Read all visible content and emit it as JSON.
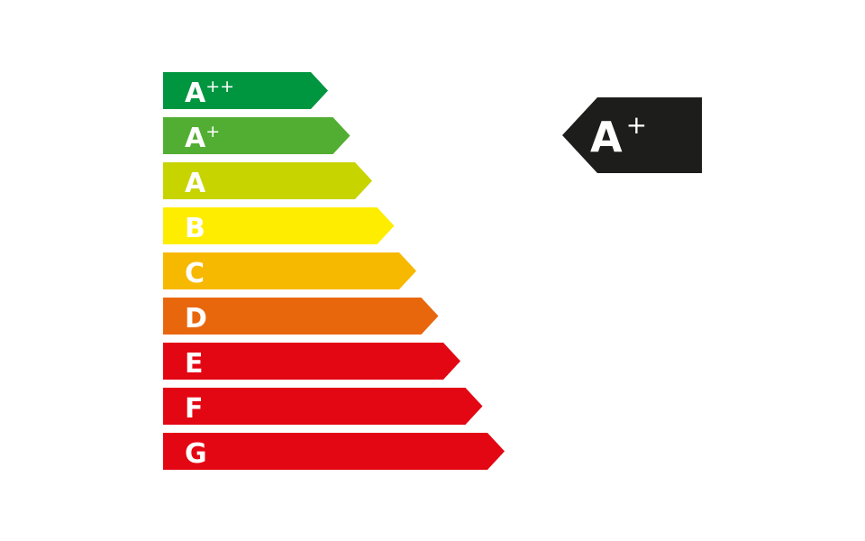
{
  "energy_scale": {
    "classes": [
      {
        "letter": "A",
        "sup": "++",
        "color": "#009640"
      },
      {
        "letter": "A",
        "sup": "+",
        "color": "#52ae32"
      },
      {
        "letter": "A",
        "sup": "",
        "color": "#c8d400"
      },
      {
        "letter": "B",
        "sup": "",
        "color": "#ffed00"
      },
      {
        "letter": "C",
        "sup": "",
        "color": "#f7b800"
      },
      {
        "letter": "D",
        "sup": "",
        "color": "#e9670c"
      },
      {
        "letter": "E",
        "sup": "",
        "color": "#e30613"
      },
      {
        "letter": "F",
        "sup": "",
        "color": "#e30613"
      },
      {
        "letter": "G",
        "sup": "",
        "color": "#e30613"
      }
    ]
  },
  "rating": {
    "letter": "A",
    "sup": "+",
    "color": "#1d1d1b"
  }
}
